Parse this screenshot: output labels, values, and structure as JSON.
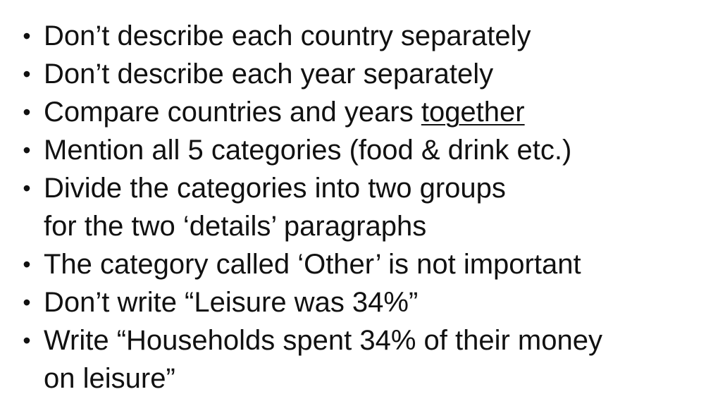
{
  "bullets": [
    {
      "text": "Don’t describe each country separately"
    },
    {
      "text": "Don’t describe each year separately"
    },
    {
      "text_before": "Compare countries and years ",
      "underlined": "together"
    },
    {
      "text": "Mention all 5 categories (food & drink etc.)"
    },
    {
      "line1": "Divide the categories into two groups",
      "line2": "for the two ‘details’ paragraphs"
    },
    {
      "text": "The category called ‘Other’ is not important"
    },
    {
      "text": "Don’t write “Leisure was 34%”"
    },
    {
      "line1": "Write “Households spent 34% of their money",
      "line2": "on leisure”"
    }
  ],
  "bullet_symbol": "•"
}
